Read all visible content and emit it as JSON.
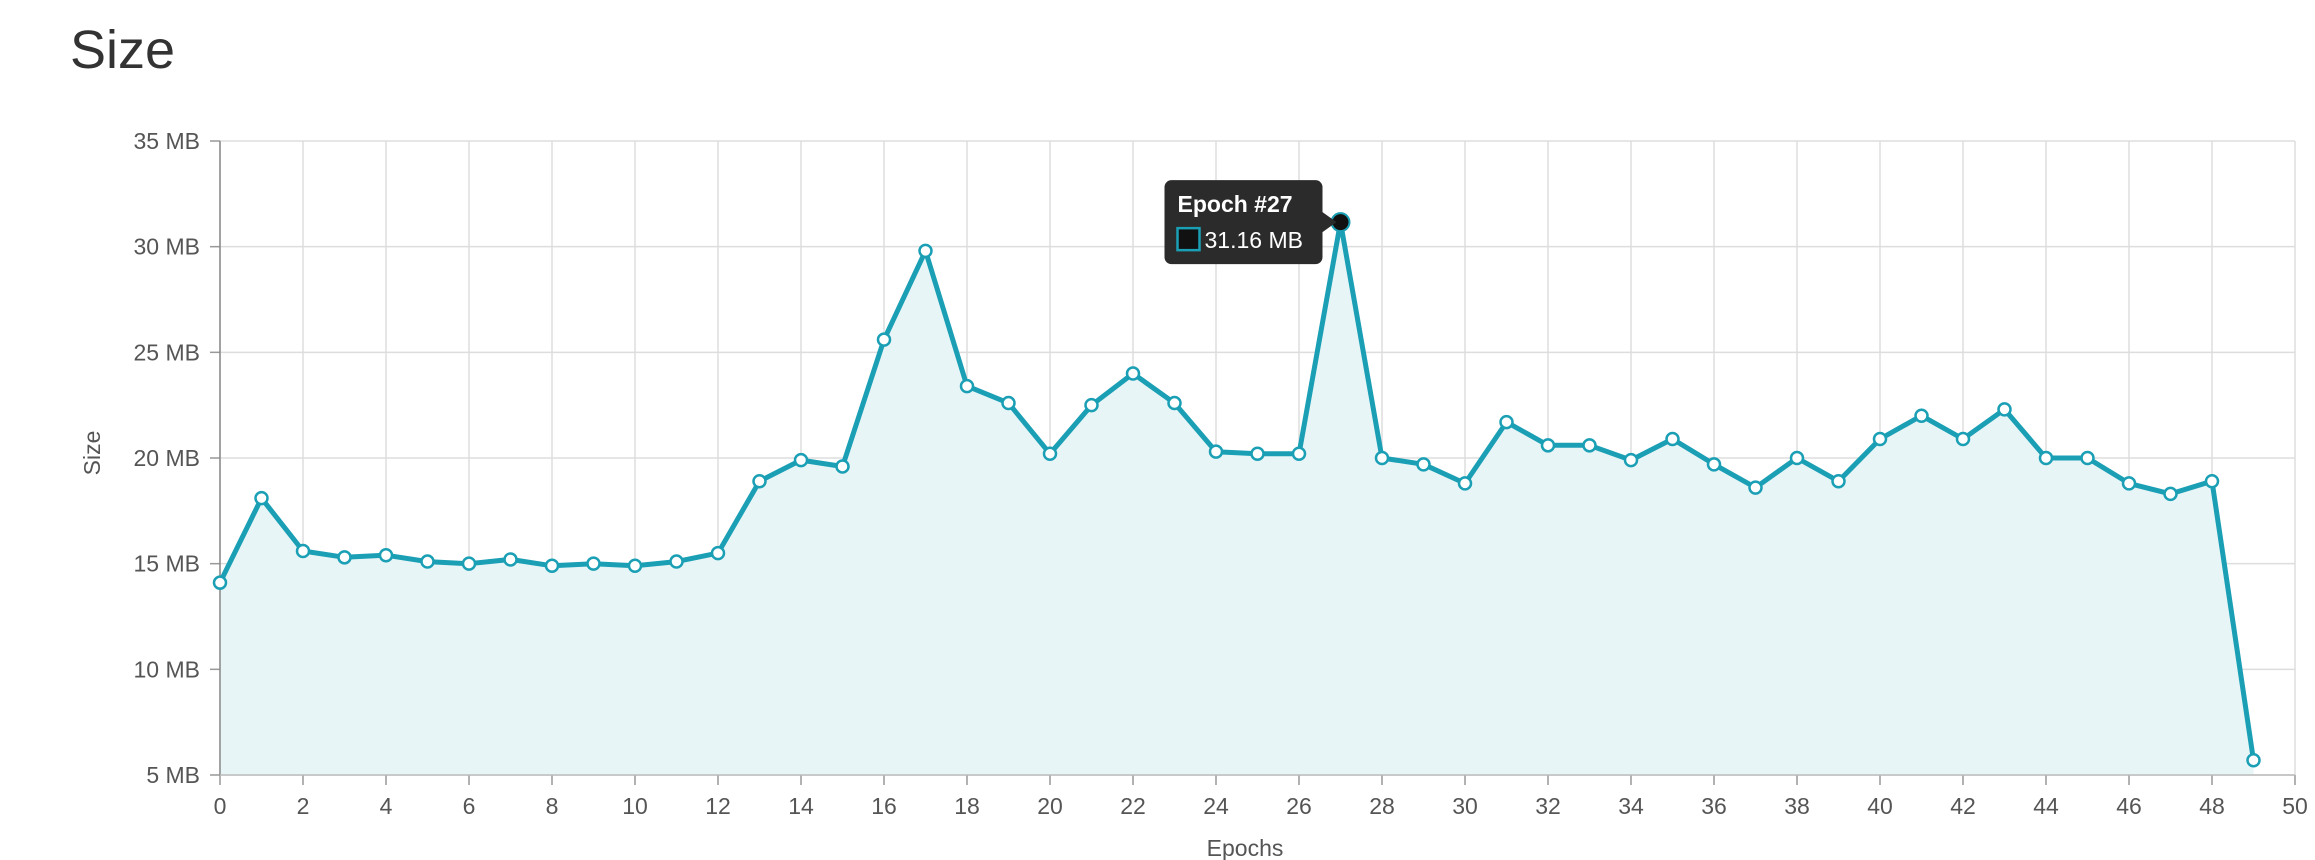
{
  "page": {
    "title": "Size"
  },
  "colors": {
    "series": "#1a9fb5",
    "fill": "#e8f5f7",
    "grid": "#dddddd",
    "tooltip_bg": "#2b2b2b"
  },
  "chart_data": {
    "type": "area",
    "title": "",
    "xlabel": "Epochs",
    "ylabel": "Size",
    "xlim": [
      0,
      50
    ],
    "ylim": [
      5,
      35
    ],
    "x_ticks": [
      "0",
      "2",
      "4",
      "6",
      "8",
      "10",
      "12",
      "14",
      "16",
      "18",
      "20",
      "22",
      "24",
      "26",
      "28",
      "30",
      "32",
      "34",
      "36",
      "38",
      "40",
      "42",
      "44",
      "46",
      "48",
      "50"
    ],
    "y_ticks": [
      "5 MB",
      "10 MB",
      "15 MB",
      "20 MB",
      "25 MB",
      "30 MB",
      "35 MB"
    ],
    "grid": true,
    "series": [
      {
        "x": [
          0,
          1,
          2,
          3,
          4,
          5,
          6,
          7,
          8,
          9,
          10,
          11,
          12,
          13,
          14,
          15,
          16,
          17,
          18,
          19,
          20,
          21,
          22,
          23,
          24,
          25,
          26,
          27,
          28,
          29,
          30,
          31,
          32,
          33,
          34,
          35,
          36,
          37,
          38,
          39,
          40,
          41,
          42,
          43,
          44,
          45,
          46,
          47,
          48,
          49
        ],
        "values": [
          14.1,
          18.1,
          15.6,
          15.3,
          15.4,
          15.1,
          15.0,
          15.2,
          14.9,
          15.0,
          14.9,
          15.1,
          15.5,
          18.9,
          19.9,
          19.6,
          25.6,
          29.8,
          23.4,
          22.6,
          20.2,
          22.5,
          24.0,
          22.6,
          20.3,
          20.2,
          20.2,
          31.16,
          20.0,
          19.7,
          18.8,
          21.7,
          20.6,
          20.6,
          19.9,
          20.9,
          19.7,
          18.6,
          20.0,
          18.9,
          20.9,
          22.0,
          20.9,
          22.3,
          20.0,
          20.0,
          18.8,
          18.3,
          18.9,
          5.7
        ]
      }
    ],
    "tooltip": {
      "title": "Epoch #27",
      "value": "31.16 MB",
      "index": 27
    }
  }
}
